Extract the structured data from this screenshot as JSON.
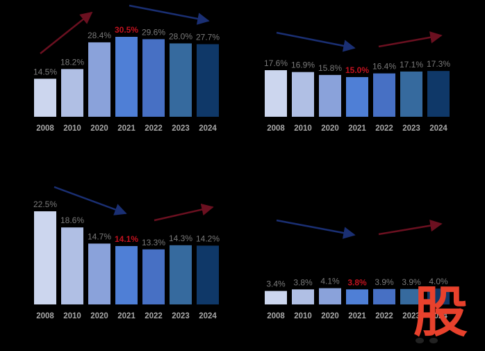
{
  "colors": {
    "background": "#000000",
    "bar_shades": [
      "#ccd6ee",
      "#b0bfe4",
      "#8aa2da",
      "#4f7fd6",
      "#4770c4",
      "#366a9e",
      "#0f3868"
    ],
    "value_label": "#7a7a7a",
    "highlight_label": "#c1121f",
    "tick_label": "#a8a8a8",
    "trend_down": "#1a2f73",
    "trend_up": "#6b1020",
    "logo": "#e8412c"
  },
  "logo": {
    "text": "股",
    "icon": "logo-mark"
  },
  "chart_data": [
    {
      "type": "bar",
      "categories": [
        "2008",
        "2010",
        "2020",
        "2021",
        "2022",
        "2023",
        "2024"
      ],
      "series": [
        {
          "values": [
            14.5,
            18.2,
            28.4,
            30.5,
            29.6,
            28.0,
            27.7
          ]
        }
      ],
      "labels": [
        "14.5%",
        "18.2%",
        "28.4%",
        "30.5%",
        "29.6%",
        "28.0%",
        "27.7%"
      ],
      "highlight_index": 3,
      "title": "",
      "xlabel": "",
      "ylabel": "",
      "trend_arrows": [
        "up",
        "down"
      ],
      "grid": false
    },
    {
      "type": "bar",
      "categories": [
        "2008",
        "2010",
        "2020",
        "2021",
        "2022",
        "2023",
        "2024"
      ],
      "series": [
        {
          "values": [
            17.6,
            16.9,
            15.8,
            15.0,
            16.4,
            17.1,
            17.3
          ]
        }
      ],
      "labels": [
        "17.6%",
        "16.9%",
        "15.8%",
        "15.0%",
        "16.4%",
        "17.1%",
        "17.3%"
      ],
      "highlight_index": 3,
      "title": "",
      "xlabel": "",
      "ylabel": "",
      "trend_arrows": [
        "down",
        "up"
      ],
      "grid": false
    },
    {
      "type": "bar",
      "categories": [
        "2008",
        "2010",
        "2020",
        "2021",
        "2022",
        "2023",
        "2024"
      ],
      "series": [
        {
          "values": [
            22.5,
            18.6,
            14.7,
            14.1,
            13.3,
            14.3,
            14.2
          ]
        }
      ],
      "labels": [
        "22.5%",
        "18.6%",
        "14.7%",
        "14.1%",
        "13.3%",
        "14.3%",
        "14.2%"
      ],
      "highlight_index": 3,
      "title": "",
      "xlabel": "",
      "ylabel": "",
      "trend_arrows": [
        "down",
        "up"
      ],
      "grid": false
    },
    {
      "type": "bar",
      "categories": [
        "2008",
        "2010",
        "2020",
        "2021",
        "2022",
        "2023",
        "2024"
      ],
      "series": [
        {
          "values": [
            3.4,
            3.8,
            4.1,
            3.8,
            3.9,
            3.9,
            4.0
          ]
        }
      ],
      "labels": [
        "3.4%",
        "3.8%",
        "4.1%",
        "3.8%",
        "3.9%",
        "3.9%",
        "4.0%"
      ],
      "highlight_index": 3,
      "title": "",
      "xlabel": "",
      "ylabel": "",
      "trend_arrows": [
        "down",
        "up"
      ],
      "grid": false
    }
  ]
}
